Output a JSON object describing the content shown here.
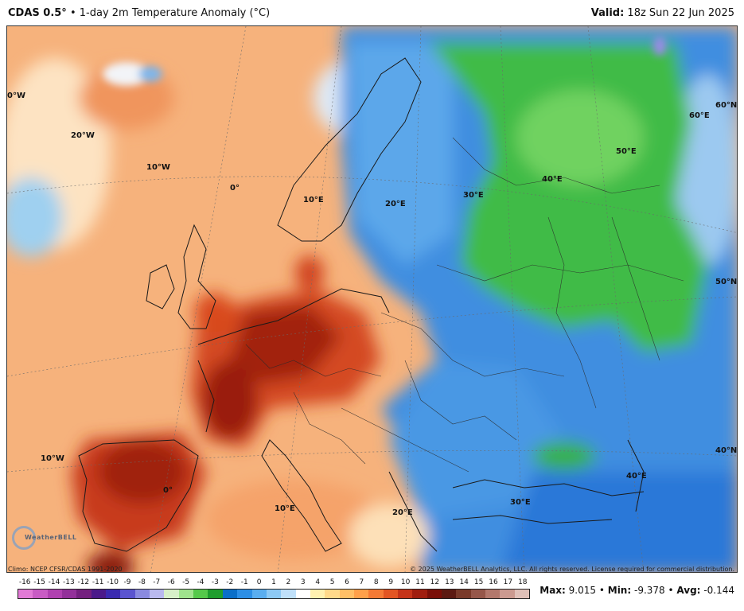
{
  "header": {
    "product": "CDAS 0.5°",
    "bullet": "•",
    "variable": "1-day 2m Temperature Anomaly (°C)",
    "valid_label": "Valid:",
    "valid_value": "18z Sun 22 Jun 2025"
  },
  "map": {
    "graticule_labels": {
      "lon_0W_top": "0°W",
      "lon_20W": "20°W",
      "lon_10W_top": "10°W",
      "lon_0": "0°",
      "lon_10E_top": "10°E",
      "lon_20E_top": "20°E",
      "lon_30E_top": "30°E",
      "lon_40E_top": "40°E",
      "lon_50E": "50°E",
      "lon_60E": "60°E",
      "lat_60N": "60°N",
      "lat_50N": "50°N",
      "lat_40N": "40°N",
      "lon_10W_bottom": "10°W",
      "lon_0_bottom": "0°",
      "lon_10E_bottom": "10°E",
      "lon_20E_bottom": "20°E",
      "lon_30E_bottom": "30°E",
      "lon_40E_bottom": "40°E"
    },
    "logo_text": "WeatherBELL"
  },
  "footer": {
    "climo": "Climo: NCEP CFSR/CDAS 1991-2020",
    "copyright": "© 2025 WeatherBELL Analytics, LLC. All rights reserved. License required for commercial distribution."
  },
  "colorbar": {
    "labels": [
      "-16",
      "-15",
      "-14",
      "-13",
      "-12",
      "-11",
      "-10",
      "-9",
      "-8",
      "-7",
      "-6",
      "-5",
      "-4",
      "-3",
      "-2",
      "-1",
      "0",
      "1",
      "2",
      "3",
      "4",
      "5",
      "6",
      "7",
      "8",
      "9",
      "10",
      "11",
      "12",
      "13",
      "14",
      "15",
      "16",
      "17",
      "18"
    ],
    "colors": [
      "#e27ad6",
      "#c95bc4",
      "#b040b0",
      "#93309a",
      "#74207f",
      "#4b1a8a",
      "#3a2ab0",
      "#5a54d0",
      "#8a8ae0",
      "#b9b9ef",
      "#d7f0c8",
      "#9fe38d",
      "#55c94a",
      "#1f9e2e",
      "#0b6fc9",
      "#2d8fe6",
      "#5aaef0",
      "#8cc9f5",
      "#bfe0fa",
      "#ffffff",
      "#fff1b0",
      "#ffd98a",
      "#ffbf66",
      "#ffa04a",
      "#f57a35",
      "#e35522",
      "#c53318",
      "#a01d0e",
      "#7a0f08",
      "#5c1a12",
      "#7a3a2a",
      "#96574a",
      "#b3786c",
      "#cc9a90",
      "#e0c0b8"
    ]
  },
  "stats": {
    "max_label": "Max:",
    "max_value": "9.015",
    "min_label": "Min:",
    "min_value": "-9.378",
    "avg_label": "Avg:",
    "avg_value": "-0.144",
    "sep": "•"
  }
}
